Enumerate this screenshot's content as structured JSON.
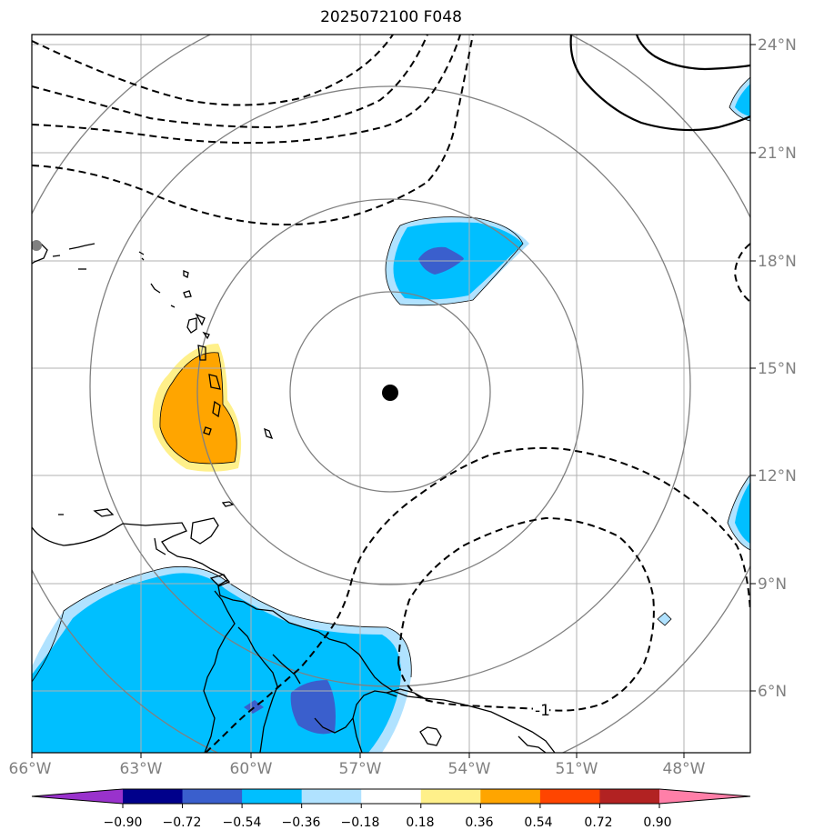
{
  "title": "2025072100 F048",
  "lon_labels": [
    "66°W",
    "63°W",
    "60°W",
    "57°W",
    "54°W",
    "51°W",
    "48°W"
  ],
  "lat_labels": [
    "24°N",
    "21°N",
    "18°N",
    "15°N",
    "12°N",
    "9°N",
    "6°N"
  ],
  "colorbar": {
    "colors": [
      "#9932cc",
      "#00008b",
      "#3a5fcd",
      "#00bfff",
      "#b0e2ff",
      "#ffffff",
      "#fff08a",
      "#ffa500",
      "#ff4500",
      "#b22222",
      "#ff7fa8"
    ],
    "ticks": [
      "−0.90",
      "−0.72",
      "−0.54",
      "−0.36",
      "−0.18",
      "0.18",
      "0.36",
      "0.54",
      "0.72",
      "0.90"
    ]
  },
  "contour_label": "-1",
  "center_marker": "storm-center-dot",
  "gray_marker": "station-dot"
}
